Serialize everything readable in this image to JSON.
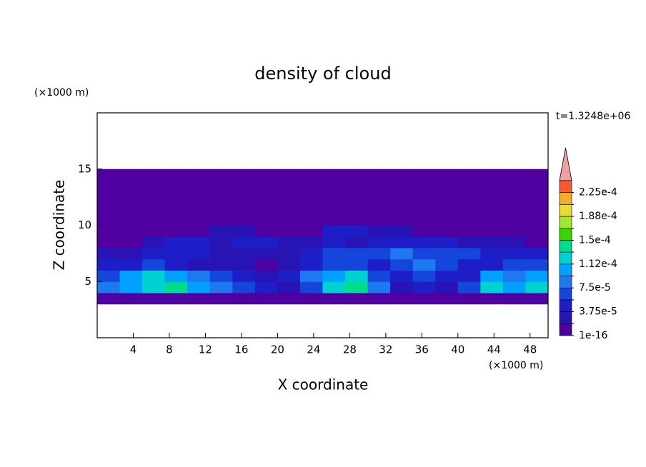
{
  "chart_data": {
    "type": "contour",
    "title": "density of cloud",
    "xlabel": "X coordinate",
    "ylabel": "Z coordinate",
    "xunit": "(×1000 m)",
    "yunit": "(×1000 m)",
    "time_label": "t=1.3248e+06",
    "xlim": [
      0,
      50
    ],
    "ylim": [
      0,
      20
    ],
    "xticks": [
      4,
      8,
      12,
      16,
      20,
      24,
      28,
      32,
      36,
      40,
      44,
      48
    ],
    "yticks": [
      5,
      10,
      15
    ],
    "x": [
      1.25,
      3.75,
      6.25,
      8.75,
      11.25,
      13.75,
      16.25,
      18.75,
      21.25,
      23.75,
      26.25,
      28.75,
      31.25,
      33.75,
      36.25,
      38.75,
      41.25,
      43.75,
      46.25,
      48.75
    ],
    "y": [
      3.5,
      4.5,
      5.5,
      6.5,
      7.5,
      8.5,
      9.5,
      10.5,
      11.5,
      12.5,
      13.5,
      14.5
    ],
    "z": [
      [
        1e-16,
        1e-16,
        1e-16,
        1e-16,
        1e-16,
        1e-16,
        1e-16,
        1e-16,
        1e-16,
        1e-16,
        1e-16,
        1e-16,
        1e-16,
        1e-16,
        1e-16,
        1e-16,
        1e-16,
        1e-16,
        1e-16,
        1e-16
      ],
      [
        8e-05,
        0.0001,
        0.00012,
        0.00014,
        0.0001,
        8e-05,
        6e-05,
        4e-05,
        2e-05,
        6e-05,
        0.00012,
        0.00014,
        8e-05,
        2e-05,
        4e-05,
        2e-05,
        6e-05,
        0.00012,
        0.0001,
        0.00012
      ],
      [
        6e-05,
        0.0001,
        0.00012,
        0.0001,
        8e-05,
        6e-05,
        4e-05,
        2e-05,
        4e-05,
        8e-05,
        0.0001,
        0.00012,
        6e-05,
        4e-05,
        6e-05,
        4e-05,
        4e-05,
        0.0001,
        8e-05,
        0.0001
      ],
      [
        4e-05,
        4e-05,
        6e-05,
        4e-05,
        2e-05,
        2e-05,
        2e-05,
        1e-16,
        2e-05,
        4e-05,
        6e-05,
        6e-05,
        4e-05,
        6e-05,
        8e-05,
        6e-05,
        4e-05,
        4e-05,
        6e-05,
        6e-05
      ],
      [
        2e-05,
        2e-05,
        4e-05,
        4e-05,
        4e-05,
        2e-05,
        2e-05,
        2e-05,
        2e-05,
        4e-05,
        6e-05,
        6e-05,
        6e-05,
        8e-05,
        6e-05,
        6e-05,
        6e-05,
        4e-05,
        4e-05,
        4e-05
      ],
      [
        1e-16,
        1e-16,
        2e-05,
        4e-05,
        4e-05,
        2e-05,
        4e-05,
        4e-05,
        2e-05,
        2e-05,
        4e-05,
        2e-05,
        4e-05,
        4e-05,
        4e-05,
        4e-05,
        2e-05,
        2e-05,
        2e-05,
        1e-16
      ],
      [
        1e-16,
        1e-16,
        1e-16,
        1e-16,
        1e-16,
        2e-05,
        2e-05,
        1e-16,
        1e-16,
        1e-16,
        4e-05,
        4e-05,
        2e-05,
        2e-05,
        1e-16,
        1e-16,
        1e-16,
        1e-16,
        1e-16,
        1e-16
      ],
      [
        1e-16,
        1e-16,
        1e-16,
        1e-16,
        1e-16,
        1e-16,
        1e-16,
        1e-16,
        1e-16,
        1e-16,
        1e-16,
        1e-16,
        1e-16,
        1e-16,
        1e-16,
        1e-16,
        1e-16,
        1e-16,
        1e-16,
        1e-16
      ],
      [
        1e-16,
        1e-16,
        1e-16,
        1e-16,
        1e-16,
        1e-16,
        1e-16,
        1e-16,
        1e-16,
        1e-16,
        1e-16,
        1e-16,
        1e-16,
        1e-16,
        1e-16,
        1e-16,
        1e-16,
        1e-16,
        1e-16,
        1e-16
      ],
      [
        1e-16,
        1e-16,
        1e-16,
        1e-16,
        1e-16,
        1e-16,
        1e-16,
        1e-16,
        1e-16,
        1e-16,
        1e-16,
        1e-16,
        1e-16,
        1e-16,
        1e-16,
        1e-16,
        1e-16,
        1e-16,
        1e-16,
        1e-16
      ],
      [
        1e-16,
        1e-16,
        1e-16,
        1e-16,
        1e-16,
        1e-16,
        1e-16,
        1e-16,
        1e-16,
        1e-16,
        1e-16,
        1e-16,
        1e-16,
        1e-16,
        1e-16,
        1e-16,
        1e-16,
        1e-16,
        1e-16,
        1e-16
      ],
      [
        1e-16,
        1e-16,
        1e-16,
        1e-16,
        1e-16,
        1e-16,
        1e-16,
        1e-16,
        1e-16,
        1e-16,
        1e-16,
        1e-16,
        1e-16,
        1e-16,
        1e-16,
        1e-16,
        1e-16,
        1e-16,
        1e-16,
        1e-16
      ]
    ],
    "levels": [
      1e-16,
      1.875e-05,
      {
        "value": 3.75e-05,
        "label": "3.75e-5"
      },
      5.625e-05,
      {
        "value": 7.5e-05,
        "label": "7.5e-5"
      },
      9.375e-05,
      {
        "value": 0.0001125,
        "label": "1.12e-4"
      },
      0.00013125,
      {
        "value": 0.00015,
        "label": "1.5e-4"
      },
      0.00016875,
      {
        "value": 0.0001875,
        "label": "1.88e-4"
      },
      0.00020625,
      {
        "value": 0.000225,
        "label": "2.25e-4"
      }
    ],
    "colors": [
      "#5000a0",
      "#2814b4",
      "#1e1ec8",
      "#1446dc",
      "#1e78f0",
      "#00a0ff",
      "#00d2d2",
      "#00dc8c",
      "#3cd200",
      "#a0e632",
      "#e6dc32",
      "#f0af28",
      "#fa5a32",
      "#f0a0a0"
    ]
  }
}
